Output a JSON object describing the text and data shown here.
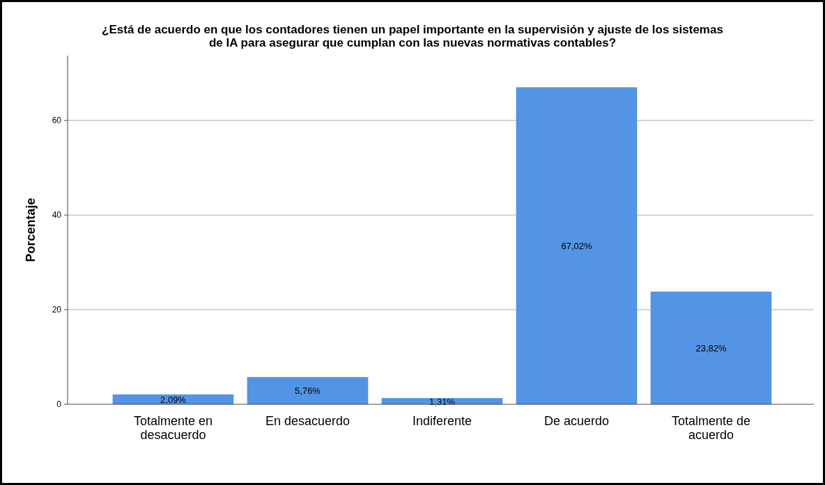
{
  "chart_data": {
    "type": "bar",
    "title": "¿Está de acuerdo en que los contadores tienen un papel importante en la supervisión y ajuste de los sistemas de IA para asegurar que cumplan con las nuevas normativas contables?",
    "ylabel": "Porcentaje",
    "categories": [
      "Totalmente en desacuerdo",
      "En desacuerdo",
      "Indiferente",
      "De acuerdo",
      "Totalmente de acuerdo"
    ],
    "values": [
      2.09,
      5.76,
      1.31,
      67.02,
      23.82
    ],
    "value_labels": [
      "2,09%",
      "5,76%",
      "1,31%",
      "67,02%",
      "23,82%"
    ],
    "color": "#5394e4",
    "ylim": [
      0,
      73.7
    ],
    "yticks": [
      0,
      20,
      40,
      60
    ],
    "grid": "y"
  }
}
